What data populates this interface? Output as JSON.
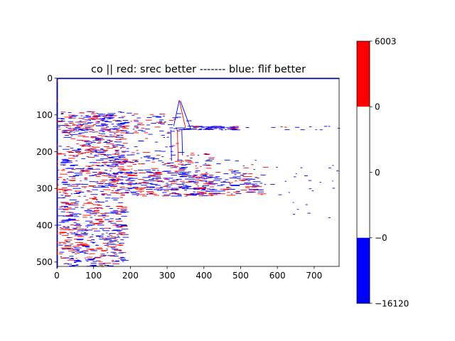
{
  "chart_data": [
    {
      "type": "heatmap",
      "title": "co || red: srec better ------- blue: flif better",
      "xlabel": "",
      "ylabel": "",
      "xlim": [
        0,
        768
      ],
      "ylim": [
        512,
        0
      ],
      "xticks": [
        0,
        100,
        200,
        300,
        400,
        500,
        600,
        700
      ],
      "yticks": [
        0,
        100,
        200,
        300,
        400,
        500
      ],
      "grid": false,
      "colors": {
        "positive": "#ff0000",
        "negative": "#0000ff",
        "zero": "#ffffff"
      },
      "description_of_content": "sparse edge-like pattern of red and blue pixels"
    },
    {
      "type": "colorbar",
      "segments": [
        {
          "from": "6003",
          "to": "0",
          "color": "#ff0000"
        },
        {
          "from": "0",
          "to": "0",
          "color": "#ffffff"
        },
        {
          "from": "0",
          "to": "−0",
          "color": "#ffffff"
        },
        {
          "from": "−0",
          "to": "−16120",
          "color": "#0000ff"
        }
      ],
      "tick_labels": [
        "6003",
        "0",
        "0",
        "−0",
        "−16120"
      ]
    }
  ]
}
